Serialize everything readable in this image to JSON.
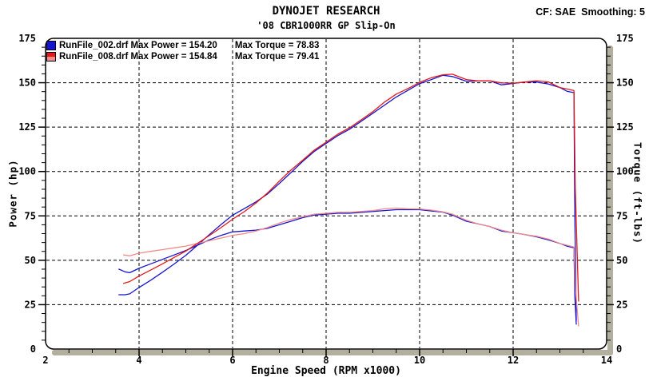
{
  "header": {
    "title": "DYNOJET RESEARCH",
    "subtitle": "'08 CBR1000RR GP Slip-On",
    "correction": "CF: SAE  Smoothing: 5"
  },
  "legend": {
    "entries": [
      {
        "file": "RunFile_002.drf",
        "power_label": "RunFile_002.drf Max Power = 154.20",
        "torque_label": "Max Torque = 78.83",
        "max_power": "154.20",
        "max_torque": "78.83",
        "color": "#1515cf",
        "torque_color": "#1515cf"
      },
      {
        "file": "RunFile_008.drf",
        "power_label": "RunFile_008.drf Max Power = 154.84",
        "torque_label": "Max Torque = 79.41",
        "max_power": "154.84",
        "max_torque": "79.41",
        "color": "#e41818",
        "torque_color": "#f28b8b"
      }
    ]
  },
  "axes": {
    "left_title": "Power (hp)",
    "right_title": "Torque (ft-lbs)",
    "bottom_title": "Engine Speed (RPM x1000)"
  },
  "colors": {
    "shadow": "#b3af9f",
    "frame": "#000000",
    "grid": "#000000",
    "background": "#ffffff"
  },
  "chart_data": {
    "type": "line",
    "title": "DYNOJET RESEARCH",
    "subtitle": "'08 CBR1000RR GP Slip-On",
    "xlabel": "Engine Speed (RPM x1000)",
    "ylabel": "Power (hp)",
    "ylabel_right": "Torque (ft-lbs)",
    "xlim": [
      2,
      14
    ],
    "ylim": [
      0,
      175
    ],
    "x_ticks": [
      2,
      4,
      6,
      8,
      10,
      12,
      14
    ],
    "y_ticks": [
      0,
      25,
      50,
      75,
      100,
      125,
      150,
      175
    ],
    "x_gridlines": [
      4,
      6,
      8,
      10,
      12
    ],
    "y_gridlines": [
      25,
      50,
      75,
      100,
      125,
      150
    ],
    "grid": "dashed",
    "legend_position": "top-left",
    "series": [
      {
        "name": "RunFile_002.drf Power (hp)",
        "slug": "power-curve-runfile-002",
        "axis": "left",
        "color": "#1515cf",
        "max": 154.2,
        "x": [
          3.57,
          3.7,
          3.8,
          4.0,
          4.25,
          4.5,
          4.75,
          5.0,
          5.25,
          5.5,
          5.75,
          6.0,
          6.25,
          6.5,
          6.75,
          7.0,
          7.25,
          7.5,
          7.75,
          8.0,
          8.25,
          8.5,
          8.75,
          9.0,
          9.25,
          9.5,
          9.75,
          10.0,
          10.25,
          10.5,
          10.7,
          11.0,
          11.25,
          11.5,
          11.75,
          12.0,
          12.25,
          12.5,
          12.75,
          13.0,
          13.15,
          13.3,
          13.32,
          13.35
        ],
        "y": [
          30.6,
          30.6,
          31.1,
          34.7,
          38.8,
          43.3,
          47.9,
          52.8,
          58.5,
          64.4,
          70.1,
          75.4,
          79.1,
          82.9,
          87.4,
          93.3,
          99.4,
          105.7,
          111.4,
          115.8,
          120.2,
          123.8,
          128.3,
          132.8,
          137.4,
          142.0,
          145.7,
          149.5,
          151.8,
          154.2,
          153.5,
          150.8,
          151.0,
          151.1,
          148.8,
          149.6,
          150.4,
          150.4,
          149.3,
          147.3,
          145.2,
          144.4,
          75.0,
          16.0
        ]
      },
      {
        "name": "RunFile_002.drf Torque (ft-lbs)",
        "slug": "torque-curve-runfile-002",
        "axis": "right",
        "color": "#1515cf",
        "max": 78.83,
        "x": [
          3.57,
          3.7,
          3.8,
          4.0,
          4.25,
          4.5,
          4.75,
          5.0,
          5.25,
          5.5,
          5.75,
          6.0,
          6.25,
          6.5,
          6.75,
          7.0,
          7.25,
          7.5,
          7.75,
          8.0,
          8.25,
          8.5,
          8.75,
          9.0,
          9.25,
          9.5,
          9.75,
          10.0,
          10.25,
          10.5,
          10.7,
          11.0,
          11.25,
          11.5,
          11.75,
          12.0,
          12.25,
          12.5,
          12.75,
          13.0,
          13.15,
          13.3,
          13.32,
          13.35
        ],
        "y": [
          45.0,
          43.5,
          43.0,
          45.5,
          48.0,
          50.5,
          53.0,
          55.5,
          58.5,
          61.5,
          64.0,
          66.0,
          66.5,
          67.0,
          68.0,
          70.0,
          72.0,
          74.0,
          75.5,
          76.0,
          76.5,
          76.5,
          77.0,
          77.5,
          78.0,
          78.5,
          78.5,
          78.5,
          77.8,
          77.1,
          75.5,
          72.0,
          70.5,
          69.0,
          66.5,
          65.5,
          64.5,
          63.2,
          61.5,
          59.5,
          58.0,
          57.0,
          30.0,
          14.0
        ]
      },
      {
        "name": "RunFile_008.drf Torque (ft-lbs)",
        "slug": "torque-curve-runfile-008",
        "axis": "right",
        "color": "#f28b8b",
        "max": 79.41,
        "x": [
          3.67,
          3.8,
          4.0,
          4.25,
          4.5,
          4.75,
          5.0,
          5.25,
          5.5,
          5.75,
          6.0,
          6.25,
          6.5,
          6.75,
          7.0,
          7.25,
          7.5,
          7.75,
          8.0,
          8.25,
          8.5,
          8.75,
          9.0,
          9.25,
          9.5,
          9.75,
          10.0,
          10.25,
          10.5,
          10.7,
          11.0,
          11.25,
          11.5,
          11.75,
          12.0,
          12.25,
          12.5,
          12.75,
          13.0,
          13.15,
          13.3,
          13.33,
          13.4
        ],
        "y": [
          53.0,
          52.5,
          54.0,
          55.0,
          56.0,
          57.0,
          58.0,
          59.5,
          61.0,
          62.5,
          64.0,
          65.0,
          66.5,
          68.5,
          71.0,
          73.0,
          74.5,
          76.0,
          76.5,
          77.0,
          77.0,
          77.5,
          78.0,
          79.0,
          79.4,
          79.0,
          78.9,
          78.3,
          77.3,
          76.0,
          72.5,
          70.5,
          69.0,
          67.0,
          65.5,
          64.5,
          63.5,
          62.0,
          59.5,
          58.5,
          57.5,
          35.0,
          13.0
        ]
      },
      {
        "name": "RunFile_008.drf Power (hp)",
        "slug": "power-curve-runfile-008",
        "axis": "left",
        "color": "#e41818",
        "max": 154.84,
        "x": [
          3.67,
          3.8,
          4.0,
          4.25,
          4.5,
          4.75,
          5.0,
          5.25,
          5.5,
          5.75,
          6.0,
          6.25,
          6.5,
          6.75,
          7.0,
          7.25,
          7.5,
          7.75,
          8.0,
          8.25,
          8.5,
          8.75,
          9.0,
          9.25,
          9.5,
          9.75,
          10.0,
          10.25,
          10.5,
          10.7,
          11.0,
          11.25,
          11.5,
          11.75,
          12.0,
          12.25,
          12.5,
          12.75,
          13.0,
          13.15,
          13.3,
          13.33,
          13.4
        ],
        "y": [
          37.0,
          38.0,
          41.1,
          44.5,
          48.0,
          51.6,
          55.2,
          59.5,
          63.9,
          68.4,
          73.1,
          77.4,
          82.3,
          88.0,
          94.6,
          100.8,
          106.4,
          112.1,
          116.5,
          121.0,
          124.6,
          129.1,
          133.7,
          139.1,
          143.6,
          146.7,
          150.2,
          152.8,
          154.5,
          154.8,
          151.8,
          151.0,
          151.1,
          149.9,
          149.7,
          150.4,
          151.1,
          150.5,
          147.3,
          146.5,
          145.6,
          90.0,
          27.0
        ]
      }
    ]
  }
}
